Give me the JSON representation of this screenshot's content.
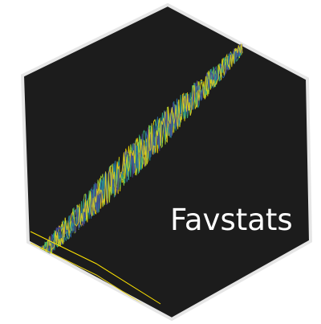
{
  "logo": {
    "title": "Favstats",
    "colors": {
      "hexagon_fill": "#1c1c1c",
      "hexagon_border": "#e6e6e6",
      "background": "#ffffff",
      "title_text": "#ffffff"
    },
    "trace_colors": [
      "#ffe400",
      "#9bd33a",
      "#36b67a",
      "#1f8f8c",
      "#2d6ea8",
      "#4b3f8f",
      "#e6d11a"
    ]
  }
}
